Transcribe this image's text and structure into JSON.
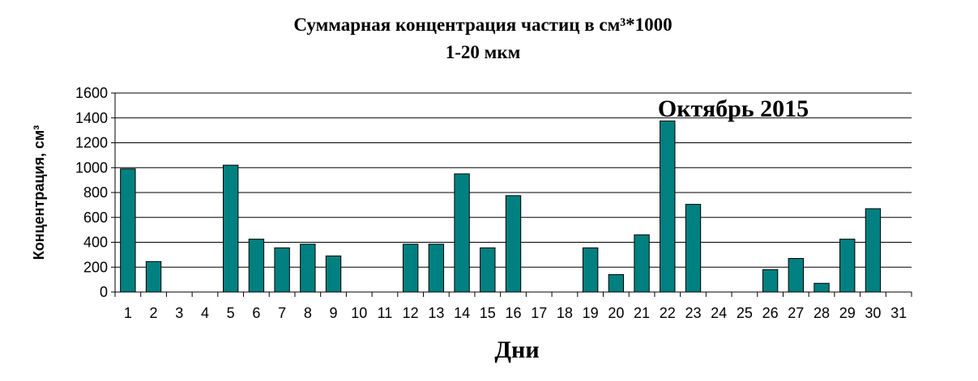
{
  "chart_data": {
    "type": "bar",
    "title": "Суммарная концентрация частиц в см³*1000",
    "subtitle": "1-20 мкм",
    "annotation": "Октябрь 2015",
    "xlabel": "Дни",
    "ylabel": "Концентрация, см³",
    "ylim": [
      0,
      1600
    ],
    "yticks": [
      0,
      200,
      400,
      600,
      800,
      1000,
      1200,
      1400,
      1600
    ],
    "grid": true,
    "categories": [
      "1",
      "2",
      "3",
      "4",
      "5",
      "6",
      "7",
      "8",
      "9",
      "10",
      "11",
      "12",
      "13",
      "14",
      "15",
      "16",
      "17",
      "18",
      "19",
      "20",
      "21",
      "22",
      "23",
      "24",
      "25",
      "26",
      "27",
      "28",
      "29",
      "30",
      "31"
    ],
    "values": [
      990,
      245,
      0,
      0,
      1020,
      425,
      355,
      385,
      290,
      0,
      0,
      385,
      385,
      950,
      355,
      775,
      0,
      0,
      355,
      140,
      460,
      1375,
      705,
      0,
      0,
      180,
      270,
      70,
      425,
      670,
      0
    ],
    "colors": {
      "bar": "#008080",
      "grid": "#000000"
    }
  }
}
